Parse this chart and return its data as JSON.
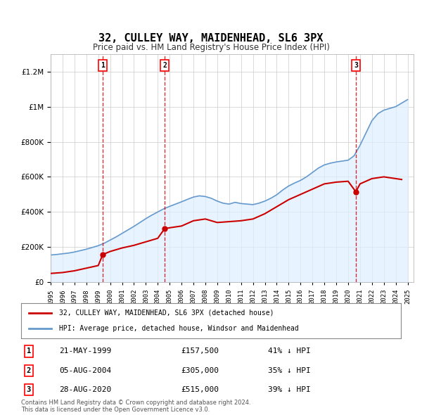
{
  "title": "32, CULLEY WAY, MAIDENHEAD, SL6 3PX",
  "subtitle": "Price paid vs. HM Land Registry's House Price Index (HPI)",
  "ylabel": "",
  "background_color": "#ffffff",
  "plot_bg_color": "#ffffff",
  "grid_color": "#cccccc",
  "transactions": [
    {
      "num": 1,
      "date": "21-MAY-1999",
      "price": 157500,
      "year": 1999.38,
      "hpi_pct": "41% ↓ HPI"
    },
    {
      "num": 2,
      "date": "05-AUG-2004",
      "price": 305000,
      "year": 2004.58,
      "hpi_pct": "35% ↓ HPI"
    },
    {
      "num": 3,
      "date": "28-AUG-2020",
      "price": 515000,
      "year": 2020.65,
      "hpi_pct": "39% ↓ HPI"
    }
  ],
  "legend_property_label": "32, CULLEY WAY, MAIDENHEAD, SL6 3PX (detached house)",
  "legend_hpi_label": "HPI: Average price, detached house, Windsor and Maidenhead",
  "footer": "Contains HM Land Registry data © Crown copyright and database right 2024.\nThis data is licensed under the Open Government Licence v3.0.",
  "property_color": "#cc0000",
  "hpi_color": "#6699cc",
  "hpi_fill_color": "#ddeeff",
  "dashed_color": "#cc0000",
  "ylim": [
    0,
    1300000
  ],
  "xlim_start": 1995,
  "xlim_end": 2025.5,
  "hpi_years": [
    1995,
    1995.5,
    1996,
    1996.5,
    1997,
    1997.5,
    1998,
    1998.5,
    1999,
    1999.5,
    2000,
    2000.5,
    2001,
    2001.5,
    2002,
    2002.5,
    2003,
    2003.5,
    2004,
    2004.5,
    2005,
    2005.5,
    2006,
    2006.5,
    2007,
    2007.5,
    2008,
    2008.5,
    2009,
    2009.5,
    2010,
    2010.5,
    2011,
    2011.5,
    2012,
    2012.5,
    2013,
    2013.5,
    2014,
    2014.5,
    2015,
    2015.5,
    2016,
    2016.5,
    2017,
    2017.5,
    2018,
    2018.5,
    2019,
    2019.5,
    2020,
    2020.5,
    2021,
    2021.5,
    2022,
    2022.5,
    2023,
    2023.5,
    2024,
    2024.5,
    2025
  ],
  "hpi_values": [
    155000,
    158000,
    162000,
    166000,
    172000,
    180000,
    188000,
    198000,
    208000,
    222000,
    240000,
    258000,
    278000,
    298000,
    318000,
    340000,
    362000,
    382000,
    400000,
    418000,
    432000,
    445000,
    458000,
    472000,
    485000,
    492000,
    488000,
    478000,
    462000,
    450000,
    445000,
    455000,
    448000,
    445000,
    442000,
    450000,
    462000,
    478000,
    498000,
    525000,
    548000,
    565000,
    580000,
    600000,
    625000,
    650000,
    668000,
    678000,
    685000,
    690000,
    695000,
    720000,
    780000,
    850000,
    920000,
    960000,
    980000,
    990000,
    1000000,
    1020000,
    1040000
  ],
  "property_years": [
    1995,
    1996,
    1997,
    1998,
    1999,
    1999.38,
    2000,
    2001,
    2002,
    2003,
    2004,
    2004.58,
    2005,
    2006,
    2007,
    2008,
    2009,
    2010,
    2011,
    2012,
    2013,
    2014,
    2015,
    2016,
    2017,
    2018,
    2019,
    2020,
    2020.65,
    2021,
    2022,
    2023,
    2024,
    2024.5
  ],
  "property_values": [
    50000,
    55000,
    65000,
    80000,
    95000,
    157500,
    175000,
    195000,
    210000,
    230000,
    250000,
    305000,
    310000,
    320000,
    350000,
    360000,
    340000,
    345000,
    350000,
    360000,
    390000,
    430000,
    470000,
    500000,
    530000,
    560000,
    570000,
    575000,
    515000,
    560000,
    590000,
    600000,
    590000,
    585000
  ]
}
